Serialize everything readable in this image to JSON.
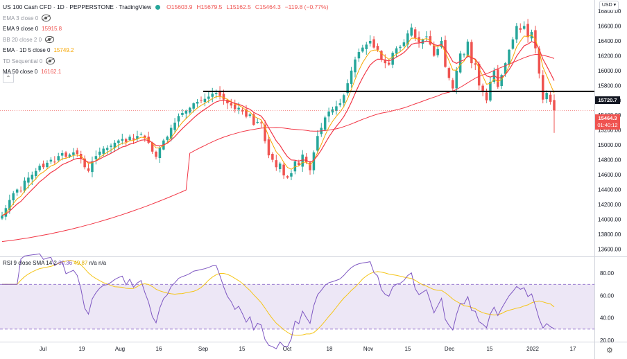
{
  "header": {
    "symbol": "US 100 Cash CFD · 1D · PEPPERSTONE · TradingView",
    "open": "O15603.9",
    "high": "H15679.5",
    "low": "L15162.5",
    "close": "C15464.3",
    "change": "−119.8 (−0.77%)",
    "currency": "USD"
  },
  "indicators": [
    {
      "label": "EMA 3 close 0",
      "value": "",
      "color": "#9598a1"
    },
    {
      "label": "EMA 9 close 0",
      "value": "15915.8",
      "color": "#ef5350"
    },
    {
      "label": "BB 20 close 2 0",
      "value": "",
      "color": "#9598a1"
    },
    {
      "label": "EMA · 1D 5 close 0",
      "value": "15749.2",
      "color": "#f7a600"
    },
    {
      "label": "TD Sequential 0",
      "value": "",
      "color": "#9598a1"
    },
    {
      "label": "MA 50 close 0",
      "value": "16162.1",
      "color": "#ef5350"
    }
  ],
  "rsi_legend": {
    "label": "RSI 9 close SMA 14 2",
    "rsi": "30.36",
    "sma": "49.87",
    "extra1": "n/a",
    "extra2": "n/a"
  },
  "price_tags": {
    "level": "15720.7",
    "last": "15464.3",
    "countdown": "01:40:12"
  },
  "colors": {
    "up": "#26a69a",
    "down": "#ef5350",
    "ema9": "#f23645",
    "ema5": "#f7a600",
    "ma50": "#f23645",
    "rsi": "#7e57c2",
    "rsi_sma": "#f5c518",
    "rsi_band": "#ede7f6"
  },
  "chart_data": [
    {
      "type": "candlestick",
      "title": "US 100 Cash CFD · 1D · PEPPERSTONE",
      "x_ticks": [
        "Jul",
        "19",
        "Aug",
        "16",
        "Sep",
        "15",
        "Oct",
        "18",
        "Nov",
        "15",
        "Dec",
        "15",
        "2022",
        "17"
      ],
      "y_ticks": [
        13600,
        13800,
        14000,
        14200,
        14400,
        14600,
        14800,
        15000,
        15200,
        15400,
        15600,
        15800,
        16000,
        16200,
        16400,
        16600,
        16800
      ],
      "ylim": [
        13500,
        16950
      ],
      "horizontal_level": 15720.7,
      "last_price": 15464.3,
      "closes": [
        14050,
        14150,
        14260,
        14350,
        14400,
        14380,
        14520,
        14560,
        14600,
        14650,
        14720,
        14700,
        14760,
        14800,
        14770,
        14850,
        14890,
        14840,
        14870,
        14900,
        14880,
        14820,
        14700,
        14650,
        14780,
        14850,
        14910,
        14950,
        14960,
        14990,
        15030,
        15060,
        15080,
        15040,
        15110,
        15070,
        15120,
        15150,
        15090,
        15030,
        14910,
        14840,
        14960,
        15060,
        15110,
        15230,
        15300,
        15390,
        15430,
        15460,
        15500,
        15560,
        15580,
        15600,
        15620,
        15650,
        15690,
        15700,
        15660,
        15610,
        15560,
        15530,
        15480,
        15500,
        15450,
        15380,
        15410,
        15270,
        15310,
        15290,
        15050,
        14860,
        14800,
        14700,
        14750,
        14590,
        14560,
        14620,
        14780,
        14730,
        14870,
        14770,
        14660,
        14900,
        15120,
        15230,
        15370,
        15450,
        15480,
        15520,
        15560,
        15670,
        15830,
        16000,
        16150,
        16250,
        16310,
        16350,
        16400,
        16310,
        16280,
        16150,
        16100,
        16080,
        16240,
        16300,
        16320,
        16380,
        16500,
        16580,
        16440,
        16380,
        16420,
        16460,
        16350,
        16200,
        16290,
        16400,
        16050,
        15900,
        15760,
        16000,
        16230,
        16220,
        16390,
        16100,
        16080,
        15800,
        15720,
        15600,
        15850,
        16000,
        15780,
        15940,
        16100,
        16280,
        16420,
        16600,
        16550,
        16600,
        16450,
        16520,
        16300,
        15960,
        15610,
        15700,
        15580,
        15464
      ]
    },
    {
      "type": "line",
      "title": "RSI 9 close SMA 14 2",
      "ylim": [
        20,
        90
      ],
      "y_ticks": [
        20,
        40,
        60,
        80
      ],
      "band": [
        30,
        70
      ],
      "rsi_last": 30.36,
      "sma_last": 49.87
    }
  ]
}
